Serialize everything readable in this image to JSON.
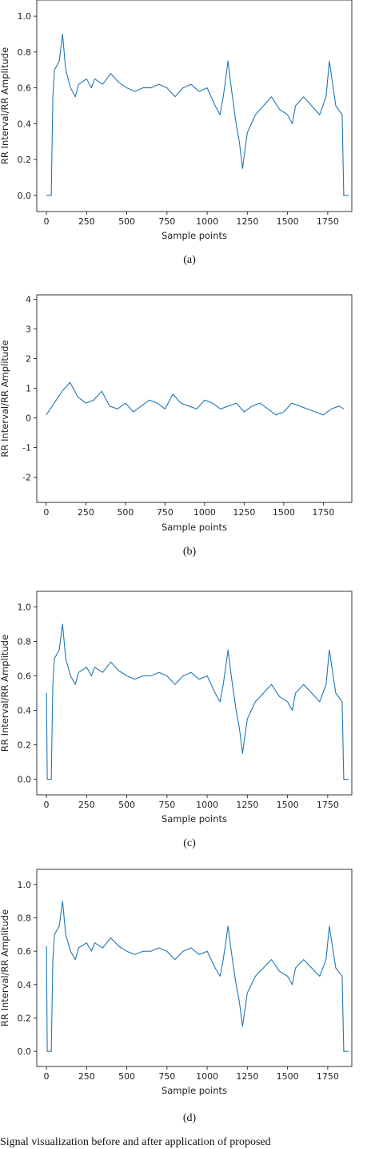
{
  "series_color": "#1f77b4",
  "figure_caption": "Signal visualization before and after application of proposed",
  "panels": [
    {
      "caption": "(a)"
    },
    {
      "caption": "(b)"
    },
    {
      "caption": "(c)"
    },
    {
      "caption": "(d)"
    }
  ],
  "chart_data": [
    {
      "type": "line",
      "xlabel": "Sample points",
      "ylabel": "RR Interval/RR Amplitude",
      "xlim": [
        -60,
        1900
      ],
      "ylim": [
        -0.09,
        1.09
      ],
      "xticks": [
        0,
        250,
        500,
        750,
        1000,
        1250,
        1500,
        1750
      ],
      "yticks": [
        0.0,
        0.2,
        0.4,
        0.6,
        0.8,
        1.0
      ],
      "grid": false,
      "series": [
        {
          "x": [
            0,
            30,
            40,
            50,
            80,
            100,
            120,
            150,
            180,
            200,
            250,
            280,
            300,
            350,
            400,
            450,
            500,
            550,
            600,
            650,
            700,
            750,
            800,
            850,
            900,
            950,
            1000,
            1050,
            1080,
            1100,
            1130,
            1150,
            1180,
            1200,
            1220,
            1250,
            1300,
            1350,
            1400,
            1450,
            1500,
            1530,
            1550,
            1600,
            1650,
            1700,
            1740,
            1760,
            1800,
            1840,
            1850,
            1880
          ],
          "y": [
            0.0,
            0.0,
            0.55,
            0.7,
            0.75,
            0.9,
            0.7,
            0.6,
            0.55,
            0.62,
            0.65,
            0.6,
            0.65,
            0.62,
            0.68,
            0.63,
            0.6,
            0.58,
            0.6,
            0.6,
            0.62,
            0.6,
            0.55,
            0.6,
            0.62,
            0.58,
            0.6,
            0.5,
            0.45,
            0.55,
            0.75,
            0.6,
            0.4,
            0.3,
            0.15,
            0.35,
            0.45,
            0.5,
            0.55,
            0.48,
            0.45,
            0.4,
            0.5,
            0.55,
            0.5,
            0.45,
            0.55,
            0.75,
            0.5,
            0.45,
            0.0,
            0.0
          ]
        }
      ]
    },
    {
      "type": "line",
      "xlabel": "Sample points",
      "ylabel": "RR Interval/RR Amplitude",
      "xlim": [
        -60,
        1930
      ],
      "ylim": [
        -2.85,
        4.15
      ],
      "xticks": [
        0,
        250,
        500,
        750,
        1000,
        1250,
        1500,
        1750
      ],
      "yticks": [
        -2,
        -1,
        0,
        1,
        2,
        3,
        4
      ],
      "grid": false,
      "series": [
        {
          "x": [
            0,
            50,
            100,
            150,
            200,
            250,
            300,
            350,
            400,
            450,
            500,
            550,
            600,
            650,
            700,
            750,
            800,
            850,
            900,
            950,
            1000,
            1050,
            1100,
            1150,
            1200,
            1250,
            1300,
            1350,
            1400,
            1450,
            1500,
            1550,
            1600,
            1650,
            1700,
            1750,
            1800,
            1850,
            1880
          ],
          "y": [
            0.1,
            0.5,
            0.9,
            1.2,
            0.7,
            0.5,
            0.6,
            0.9,
            0.4,
            0.3,
            0.5,
            0.2,
            0.4,
            0.6,
            0.5,
            0.3,
            0.8,
            0.5,
            0.4,
            0.3,
            0.6,
            0.5,
            0.3,
            0.4,
            0.5,
            0.2,
            0.4,
            0.5,
            0.3,
            0.1,
            0.2,
            0.5,
            0.4,
            0.3,
            0.2,
            0.1,
            0.3,
            0.4,
            0.3
          ]
        }
      ]
    },
    {
      "type": "line",
      "xlabel": "Sample points",
      "ylabel": "RR Interval/RR Amplitude",
      "xlim": [
        -60,
        1900
      ],
      "ylim": [
        -0.09,
        1.09
      ],
      "xticks": [
        0,
        250,
        500,
        750,
        1000,
        1250,
        1500,
        1750
      ],
      "yticks": [
        0.0,
        0.2,
        0.4,
        0.6,
        0.8,
        1.0
      ],
      "grid": false,
      "series": [
        {
          "x": [
            0,
            5,
            10,
            30,
            40,
            50,
            80,
            100,
            120,
            150,
            180,
            200,
            250,
            280,
            300,
            350,
            400,
            450,
            500,
            550,
            600,
            650,
            700,
            750,
            800,
            850,
            900,
            950,
            1000,
            1050,
            1080,
            1100,
            1130,
            1150,
            1180,
            1200,
            1220,
            1250,
            1300,
            1350,
            1400,
            1450,
            1500,
            1530,
            1550,
            1600,
            1650,
            1700,
            1740,
            1760,
            1800,
            1840,
            1850,
            1880
          ],
          "y": [
            0.5,
            0.0,
            0.0,
            0.0,
            0.55,
            0.7,
            0.75,
            0.9,
            0.7,
            0.6,
            0.55,
            0.62,
            0.65,
            0.6,
            0.65,
            0.62,
            0.68,
            0.63,
            0.6,
            0.58,
            0.6,
            0.6,
            0.62,
            0.6,
            0.55,
            0.6,
            0.62,
            0.58,
            0.6,
            0.5,
            0.45,
            0.55,
            0.75,
            0.6,
            0.4,
            0.3,
            0.15,
            0.35,
            0.45,
            0.5,
            0.55,
            0.48,
            0.45,
            0.4,
            0.5,
            0.55,
            0.5,
            0.45,
            0.55,
            0.75,
            0.5,
            0.45,
            0.0,
            0.0
          ]
        }
      ]
    },
    {
      "type": "line",
      "xlabel": "Sample points",
      "ylabel": "RR Interval/RR Amplitude",
      "xlim": [
        -60,
        1900
      ],
      "ylim": [
        -0.09,
        1.09
      ],
      "xticks": [
        0,
        250,
        500,
        750,
        1000,
        1250,
        1500,
        1750
      ],
      "yticks": [
        0.0,
        0.2,
        0.4,
        0.6,
        0.8,
        1.0
      ],
      "grid": false,
      "series": [
        {
          "x": [
            0,
            5,
            10,
            30,
            40,
            50,
            80,
            100,
            120,
            150,
            180,
            200,
            250,
            280,
            300,
            350,
            400,
            450,
            500,
            550,
            600,
            650,
            700,
            750,
            800,
            850,
            900,
            950,
            1000,
            1050,
            1080,
            1100,
            1130,
            1150,
            1180,
            1200,
            1220,
            1250,
            1300,
            1350,
            1400,
            1450,
            1500,
            1530,
            1550,
            1600,
            1650,
            1700,
            1740,
            1760,
            1800,
            1840,
            1850,
            1880
          ],
          "y": [
            0.63,
            0.0,
            0.0,
            0.0,
            0.55,
            0.7,
            0.75,
            0.9,
            0.7,
            0.6,
            0.55,
            0.62,
            0.65,
            0.6,
            0.65,
            0.62,
            0.68,
            0.63,
            0.6,
            0.58,
            0.6,
            0.6,
            0.62,
            0.6,
            0.55,
            0.6,
            0.62,
            0.58,
            0.6,
            0.5,
            0.45,
            0.55,
            0.75,
            0.6,
            0.4,
            0.3,
            0.15,
            0.35,
            0.45,
            0.5,
            0.55,
            0.48,
            0.45,
            0.4,
            0.5,
            0.55,
            0.5,
            0.45,
            0.55,
            0.75,
            0.5,
            0.45,
            0.0,
            0.0
          ]
        }
      ]
    }
  ]
}
